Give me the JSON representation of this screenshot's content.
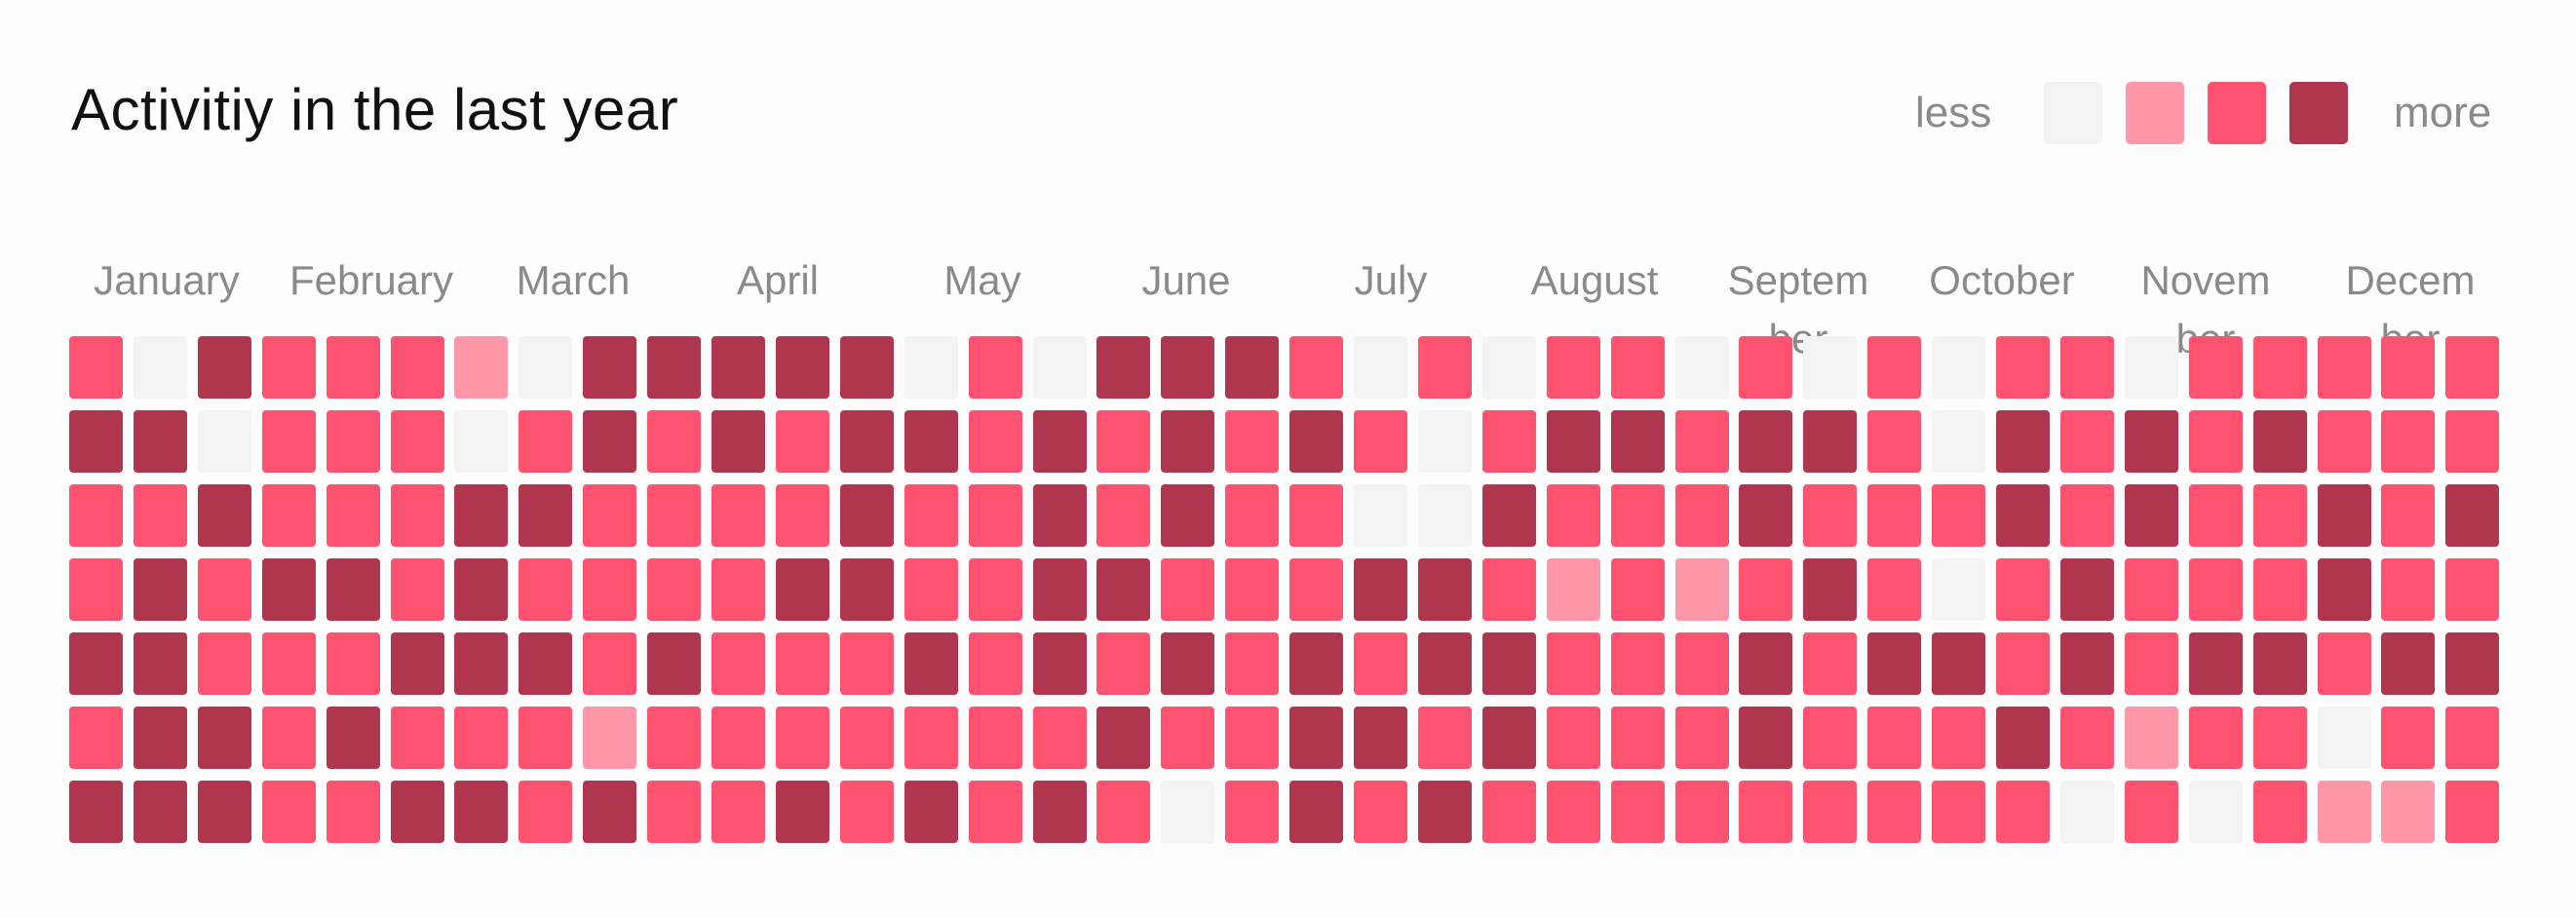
{
  "title": "Activitiy in the last year",
  "legend": {
    "less_label": "less",
    "more_label": "more",
    "levels": [
      0,
      1,
      2,
      3
    ],
    "colors": [
      "#f3f3f3",
      "#ff97a8",
      "#ff5270",
      "#b0364f"
    ]
  },
  "chart_data": {
    "type": "heatmap",
    "title": "Activitiy in the last year",
    "months": [
      "January",
      "February",
      "March",
      "April",
      "May",
      "June",
      "July",
      "August",
      "Septem ber",
      "October",
      "Novem ber",
      "Decem ber"
    ],
    "rows": 7,
    "columns": 38,
    "value_scale": "0 = none, 1 = light, 2 = medium, 3 = high",
    "levels": [
      [
        2,
        0,
        3,
        2,
        2,
        2,
        1,
        0,
        3,
        3,
        3,
        3,
        3,
        0,
        2,
        0,
        3,
        3,
        3,
        2,
        0,
        2,
        0,
        2,
        2,
        0,
        2,
        0,
        2,
        0,
        2,
        2,
        0,
        2,
        2,
        2,
        2,
        2
      ],
      [
        3,
        3,
        0,
        2,
        2,
        2,
        0,
        2,
        3,
        2,
        3,
        2,
        3,
        3,
        2,
        3,
        2,
        3,
        2,
        3,
        2,
        0,
        2,
        3,
        3,
        2,
        3,
        3,
        2,
        0,
        3,
        2,
        3,
        2,
        3,
        2,
        2,
        2
      ],
      [
        2,
        2,
        3,
        2,
        2,
        2,
        3,
        3,
        2,
        2,
        2,
        2,
        3,
        2,
        2,
        3,
        2,
        3,
        2,
        2,
        0,
        0,
        3,
        2,
        2,
        2,
        3,
        2,
        2,
        2,
        3,
        2,
        3,
        2,
        2,
        3,
        2,
        3
      ],
      [
        2,
        3,
        2,
        3,
        3,
        2,
        3,
        2,
        2,
        2,
        2,
        3,
        3,
        2,
        2,
        3,
        3,
        2,
        2,
        2,
        3,
        3,
        2,
        1,
        2,
        1,
        2,
        3,
        2,
        0,
        2,
        3,
        2,
        2,
        2,
        3,
        2,
        2
      ],
      [
        3,
        3,
        2,
        2,
        2,
        3,
        3,
        3,
        2,
        3,
        2,
        2,
        2,
        3,
        2,
        3,
        2,
        3,
        2,
        3,
        2,
        3,
        3,
        2,
        2,
        2,
        3,
        2,
        3,
        3,
        2,
        3,
        2,
        3,
        3,
        2,
        3,
        3
      ],
      [
        2,
        3,
        3,
        2,
        3,
        2,
        2,
        2,
        1,
        2,
        2,
        2,
        2,
        2,
        2,
        2,
        3,
        2,
        2,
        3,
        3,
        2,
        3,
        2,
        2,
        2,
        3,
        2,
        2,
        2,
        3,
        2,
        1,
        2,
        2,
        0,
        2,
        2
      ],
      [
        3,
        3,
        3,
        2,
        2,
        3,
        3,
        2,
        3,
        2,
        2,
        3,
        2,
        3,
        2,
        3,
        2,
        0,
        2,
        3,
        2,
        3,
        2,
        2,
        2,
        2,
        2,
        2,
        2,
        2,
        2,
        0,
        2,
        0,
        2,
        1,
        1,
        2
      ]
    ]
  }
}
